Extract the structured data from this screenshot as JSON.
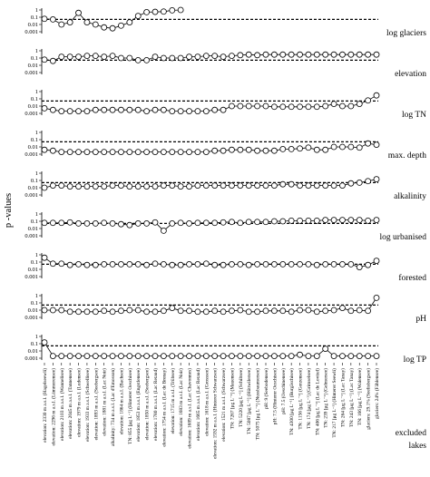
{
  "chart_data": {
    "type": "line",
    "ylabel": "p -values",
    "yscale": "log",
    "ytick_labels": [
      "1",
      "0.1",
      "0.01",
      "0.001"
    ],
    "ylim": [
      0.001,
      1
    ],
    "threshold": 0.05,
    "x_group_label": [
      "excluded",
      "lakes"
    ],
    "categories": [
      "elevation: 2330 m a.s.l. (Hagelseewli)",
      "elevation: 2296 m a.s.l. (Lämmerensee)",
      "elevation: 2103 m a.s.l. (Wannelisee)",
      "elevation: 2045 m a.s.l. (Tannensee)",
      "elevation: 1979 m a.s.l. (Ludensee)",
      "elevation: 1933 m a.s.l. (Schwellisee)",
      "elevation: 1893 m a.s.l. (Seebergsee)",
      "elevation: 1881 m a.s.l. (Lac Noir)",
      "alkalinity: 734 m a.s.l. (Lac d'Emosson)",
      "elevation: 1864 m a.s.l. (Bachsee)",
      "TN: 855 [μg L⁻¹] (Hinterer Oeschisee)",
      "elevation: 1853 m a.s.l. (Engstlensee)",
      "elevation: 1850 m a.s.l. (Seebergsee)",
      "elevation: 1780 m a.s.l. (Lac Retaud)",
      "elevation: 1754 m a.s.l. (Lac de Brenay)",
      "elevation: 1715 m a.s.l. (Trübsee)",
      "elevation: 1683 m a.s.l. (Lac Noir)",
      "elevation: 1689 m a.s.l. (Lac Chavonnes)",
      "elevation: 1665 m a.s.l. (Lac Retaud)",
      "elevation: 1618 m a.s.l. (Grosssee)",
      "elevation: 1592 m a.s.l. (Hinterer Schwarzsee)",
      "elevation: 1521 m a.s.l. (Schwarzsee)",
      "TN: 7267 [μg L⁻¹] (Mauensee)",
      "TN: 5220 [μg L⁻¹] (Schiltsee)",
      "TN: 5087 [μg L⁻¹] (Hüttwilersee)",
      "TN: 5075 [μg L⁻¹] (Nussbaumersee)",
      "pH: 9 (Seebodensee)",
      "pH: 7.5 (Hinterer Oeschisee)",
      "pH: 7.5 (Oeschinensee)",
      "TN: 4300 [μg L⁻¹] (Burgäschisee)",
      "TN: 1156 [μg L⁻¹] (Gerzensee)",
      "TN: 174 [μg L⁻¹] (Grimselsee)",
      "TN: 406 [μg L⁻¹] (Lac de Lovitel)",
      "TN: 239 [μg L⁻¹] (Gelmersee)",
      "TN: 217 [μg L⁻¹] (Hinterer Seewli)",
      "TN: 264 [μg L⁻¹] (Lac Tanay)",
      "TN: 243 [μg L⁻¹] (Lac Tanay)",
      "TN: 166 [μg L⁻¹] (Walensee)",
      "glaciers: 29.1% (Seelisbergsee)",
      "glaciers: 24% (Fählensee)"
    ],
    "series": [
      {
        "panel_label": "log glaciers",
        "values": [
          0.06,
          0.05,
          0.01,
          0.02,
          0.4,
          0.02,
          0.01,
          0.004,
          0.003,
          0.007,
          0.02,
          0.15,
          0.5,
          0.55,
          0.6,
          0.9,
          1,
          null,
          null,
          null,
          null,
          null,
          null,
          null,
          null,
          null,
          null,
          null,
          null,
          null,
          null,
          null,
          null,
          null,
          null,
          null,
          null,
          null,
          null,
          null
        ]
      },
      {
        "panel_label": "elevation",
        "values": [
          0.06,
          0.04,
          0.15,
          0.15,
          0.15,
          0.2,
          0.2,
          0.15,
          0.2,
          0.1,
          0.1,
          0.05,
          0.05,
          0.15,
          0.1,
          0.1,
          0.1,
          0.15,
          0.15,
          0.2,
          0.2,
          0.15,
          0.2,
          0.25,
          0.3,
          0.25,
          0.3,
          0.3,
          0.3,
          0.3,
          0.3,
          0.3,
          0.3,
          0.3,
          0.3,
          0.3,
          0.3,
          0.3,
          0.3,
          0.3
        ]
      },
      {
        "panel_label": "log TN",
        "values": [
          0.005,
          0.003,
          0.002,
          0.002,
          0.002,
          0.002,
          0.003,
          0.003,
          0.003,
          0.003,
          0.003,
          0.003,
          0.002,
          0.003,
          0.003,
          0.002,
          0.002,
          0.002,
          0.002,
          0.002,
          0.003,
          0.003,
          0.01,
          0.01,
          0.01,
          0.01,
          0.01,
          0.008,
          0.008,
          0.008,
          0.008,
          0.008,
          0.008,
          0.01,
          0.02,
          0.01,
          0.01,
          0.02,
          0.06,
          0.3
        ]
      },
      {
        "panel_label": "max. depth",
        "values": [
          0.004,
          0.003,
          0.002,
          0.002,
          0.002,
          0.002,
          0.002,
          0.002,
          0.002,
          0.002,
          0.002,
          0.002,
          0.002,
          0.002,
          0.002,
          0.002,
          0.002,
          0.002,
          0.002,
          0.002,
          0.003,
          0.003,
          0.004,
          0.004,
          0.004,
          0.003,
          0.003,
          0.003,
          0.005,
          0.005,
          0.006,
          0.008,
          0.004,
          0.004,
          0.01,
          0.01,
          0.01,
          0.008,
          0.03,
          0.02
        ]
      },
      {
        "panel_label": "alkalinity",
        "values": [
          0.01,
          0.02,
          0.02,
          0.015,
          0.015,
          0.015,
          0.015,
          0.015,
          0.02,
          0.02,
          0.015,
          0.015,
          0.015,
          0.015,
          0.02,
          0.02,
          0.015,
          0.015,
          0.02,
          0.02,
          0.02,
          0.02,
          0.02,
          0.02,
          0.02,
          0.02,
          0.02,
          0.02,
          0.03,
          0.03,
          0.02,
          0.02,
          0.02,
          0.02,
          0.02,
          0.02,
          0.04,
          0.05,
          0.08,
          0.15
        ]
      },
      {
        "panel_label": "log urbanised",
        "values": [
          0.06,
          0.06,
          0.06,
          0.07,
          0.05,
          0.05,
          0.05,
          0.06,
          0.05,
          0.04,
          0.03,
          0.05,
          0.05,
          0.07,
          0.005,
          0.05,
          0.06,
          0.05,
          0.06,
          0.06,
          0.06,
          0.07,
          0.08,
          0.06,
          0.08,
          0.08,
          0.08,
          0.1,
          0.1,
          0.12,
          0.12,
          0.12,
          0.12,
          0.15,
          0.15,
          0.15,
          0.15,
          0.15,
          0.12,
          0.15
        ]
      },
      {
        "panel_label": "forested",
        "values": [
          0.4,
          0.06,
          0.06,
          0.04,
          0.05,
          0.04,
          0.04,
          0.05,
          0.05,
          0.05,
          0.05,
          0.05,
          0.04,
          0.06,
          0.05,
          0.04,
          0.04,
          0.05,
          0.05,
          0.06,
          0.04,
          0.04,
          0.05,
          0.05,
          0.04,
          0.05,
          0.05,
          0.05,
          0.05,
          0.05,
          0.05,
          0.05,
          0.04,
          0.05,
          0.05,
          0.05,
          0.05,
          0.02,
          0.04,
          0.15
        ]
      },
      {
        "panel_label": "pH",
        "values": [
          0.01,
          0.01,
          0.01,
          0.006,
          0.006,
          0.006,
          0.006,
          0.008,
          0.006,
          0.008,
          0.01,
          0.01,
          0.006,
          0.006,
          0.008,
          0.02,
          0.008,
          0.008,
          0.006,
          0.006,
          0.008,
          0.006,
          0.008,
          0.01,
          0.006,
          0.006,
          0.008,
          0.008,
          0.008,
          0.006,
          0.01,
          0.01,
          0.006,
          0.008,
          0.01,
          0.02,
          0.008,
          0.01,
          0.008,
          0.5
        ]
      },
      {
        "panel_label": "log TP",
        "values": [
          0.15,
          0.002,
          0.002,
          0.002,
          0.002,
          0.002,
          0.002,
          0.002,
          0.002,
          0.002,
          0.002,
          0.002,
          0.002,
          0.002,
          0.002,
          0.002,
          0.002,
          0.002,
          0.002,
          0.002,
          0.002,
          0.002,
          0.002,
          0.002,
          0.002,
          0.002,
          0.002,
          0.002,
          0.002,
          0.002,
          0.003,
          0.002,
          0.002,
          0.02,
          0.002,
          0.002,
          0.002,
          0.002,
          0.002,
          0.002
        ]
      }
    ]
  }
}
